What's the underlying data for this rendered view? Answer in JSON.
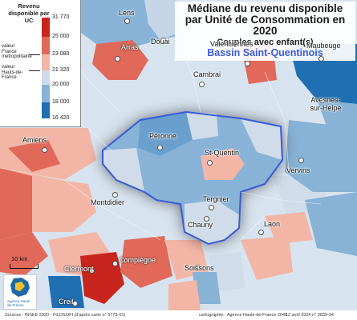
{
  "title": {
    "line1": "Médiane du revenu disponible",
    "line2": "par Unité de Consommation en 2020",
    "line3": "Couples avec enfant(s)",
    "line4": "Bassin Saint-Quentinois"
  },
  "legend": {
    "title": "Revenu disponible par UC",
    "ticks": [
      "31 770",
      "25 000",
      "23 080",
      "21 320",
      "20 000",
      "18 000",
      "16 420"
    ],
    "note_france": "valeur France métropolitaine",
    "note_hdf": "valeur Hauts-de-France",
    "classes": [
      {
        "from": 25000,
        "to": 31770,
        "color": "#c8251e"
      },
      {
        "from": 23080,
        "to": 25000,
        "color": "#e0695a"
      },
      {
        "from": 21320,
        "to": 23080,
        "color": "#f2b5a6"
      },
      {
        "from": 20000,
        "to": 21320,
        "color": "#d0dcea"
      },
      {
        "from": 18000,
        "to": 20000,
        "color": "#88b2d6"
      },
      {
        "from": 16420,
        "to": 18000,
        "color": "#1f6fb2"
      }
    ],
    "marker_france": 23080,
    "marker_hdf": 21320
  },
  "places": [
    {
      "name": "Lens"
    },
    {
      "name": "Douai"
    },
    {
      "name": "Arras"
    },
    {
      "name": "Valenciennes"
    },
    {
      "name": "Maubeuge"
    },
    {
      "name": "Cambrai"
    },
    {
      "name": "Avesnes-sur-Helpe"
    },
    {
      "name": "Amiens"
    },
    {
      "name": "Péronne"
    },
    {
      "name": "St-Quentin"
    },
    {
      "name": "Vervins"
    },
    {
      "name": "Montdidier"
    },
    {
      "name": "Tergnier"
    },
    {
      "name": "Chauny"
    },
    {
      "name": "Laon"
    },
    {
      "name": "Clermont"
    },
    {
      "name": "Compiègne"
    },
    {
      "name": "Soissons"
    },
    {
      "name": "Creil"
    }
  ],
  "scale": {
    "label": "10 km"
  },
  "logo": {
    "text": "Agence Hauts-de-France"
  },
  "footer": {
    "sources": "Sources : INSEE 2020 - FILOSOFI (d'après carte n° 5775-01)",
    "credit": "cartographie : Agence Hauts-de-France 2040",
    "date": "12 avril 2024  n° 3839-34"
  }
}
